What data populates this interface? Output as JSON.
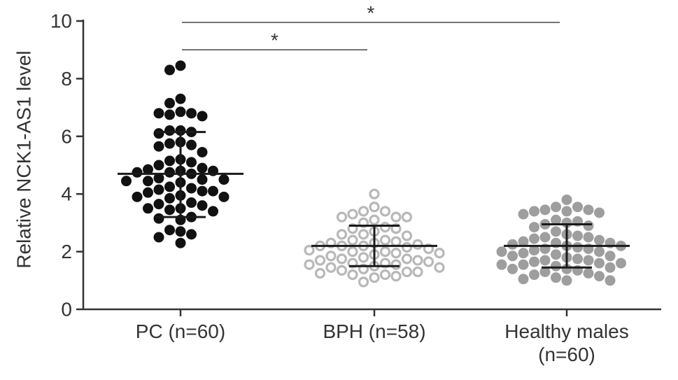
{
  "chart_data": {
    "type": "scatter",
    "title": "",
    "xlabel": "",
    "ylabel": "Relative NCK1-AS1 level",
    "ylim": [
      0,
      10
    ],
    "yticks": [
      0,
      2,
      4,
      6,
      8,
      10
    ],
    "grid": false,
    "legend": "none",
    "groups": [
      {
        "label_lines": [
          "PC (n=60)"
        ],
        "marker": "filled",
        "color": "#111111",
        "mean": 4.7,
        "sd_low": 3.2,
        "sd_high": 6.15,
        "values": [
          8.45,
          8.3,
          7.3,
          7.15,
          6.85,
          6.8,
          6.75,
          6.7,
          6.8,
          6.2,
          6.15,
          6.1,
          6.2,
          5.7,
          5.75,
          5.65,
          5.8,
          5.45,
          5.2,
          5.1,
          5.15,
          5.0,
          4.85,
          4.9,
          4.8,
          4.75,
          4.8,
          4.7,
          4.75,
          4.5,
          4.45,
          4.55,
          4.4,
          4.5,
          4.45,
          4.25,
          4.2,
          4.15,
          4.1,
          4.05,
          4.1,
          3.9,
          3.95,
          3.85,
          3.9,
          3.65,
          3.7,
          3.6,
          3.5,
          3.5,
          3.45,
          3.4,
          3.2,
          3.15,
          3.1,
          2.75,
          2.7,
          2.6,
          2.5,
          2.3
        ]
      },
      {
        "label_lines": [
          "BPH (n=58)"
        ],
        "marker": "open",
        "color": "#b8b8b8",
        "mean": 2.2,
        "sd_low": 1.5,
        "sd_high": 2.9,
        "values": [
          4.0,
          3.55,
          3.4,
          3.4,
          3.3,
          3.2,
          3.2,
          3.2,
          3.1,
          3.0,
          2.85,
          2.8,
          2.8,
          2.7,
          2.6,
          2.6,
          2.55,
          2.4,
          2.4,
          2.35,
          2.3,
          2.3,
          2.25,
          2.2,
          2.2,
          2.2,
          2.15,
          2.1,
          2.05,
          2.0,
          2.0,
          1.95,
          1.95,
          1.9,
          1.85,
          1.8,
          1.75,
          1.75,
          1.7,
          1.7,
          1.65,
          1.6,
          1.6,
          1.55,
          1.55,
          1.5,
          1.45,
          1.45,
          1.4,
          1.35,
          1.3,
          1.3,
          1.25,
          1.2,
          1.2,
          1.15,
          1.1,
          0.95
        ]
      },
      {
        "label_lines": [
          "Healthy males",
          "(n=60)"
        ],
        "marker": "filled",
        "color": "#9e9e9e",
        "mean": 2.2,
        "sd_low": 1.45,
        "sd_high": 2.95,
        "values": [
          3.8,
          3.55,
          3.55,
          3.45,
          3.45,
          3.4,
          3.4,
          3.35,
          3.3,
          3.1,
          3.05,
          3.0,
          2.95,
          2.9,
          2.85,
          2.7,
          2.6,
          2.55,
          2.5,
          2.5,
          2.45,
          2.4,
          2.35,
          2.3,
          2.3,
          2.25,
          2.2,
          2.2,
          2.15,
          2.1,
          2.1,
          2.05,
          2.0,
          2.0,
          1.95,
          1.9,
          1.85,
          1.85,
          1.8,
          1.75,
          1.7,
          1.7,
          1.65,
          1.6,
          1.6,
          1.55,
          1.55,
          1.5,
          1.45,
          1.4,
          1.4,
          1.35,
          1.3,
          1.25,
          1.2,
          1.15,
          1.1,
          1.05,
          1.0,
          1.0
        ]
      }
    ],
    "significance": [
      {
        "from_group": 0,
        "to_group": 1,
        "y": 9.0,
        "label": "*"
      },
      {
        "from_group": 0,
        "to_group": 2,
        "y": 9.95,
        "label": "*"
      }
    ]
  }
}
